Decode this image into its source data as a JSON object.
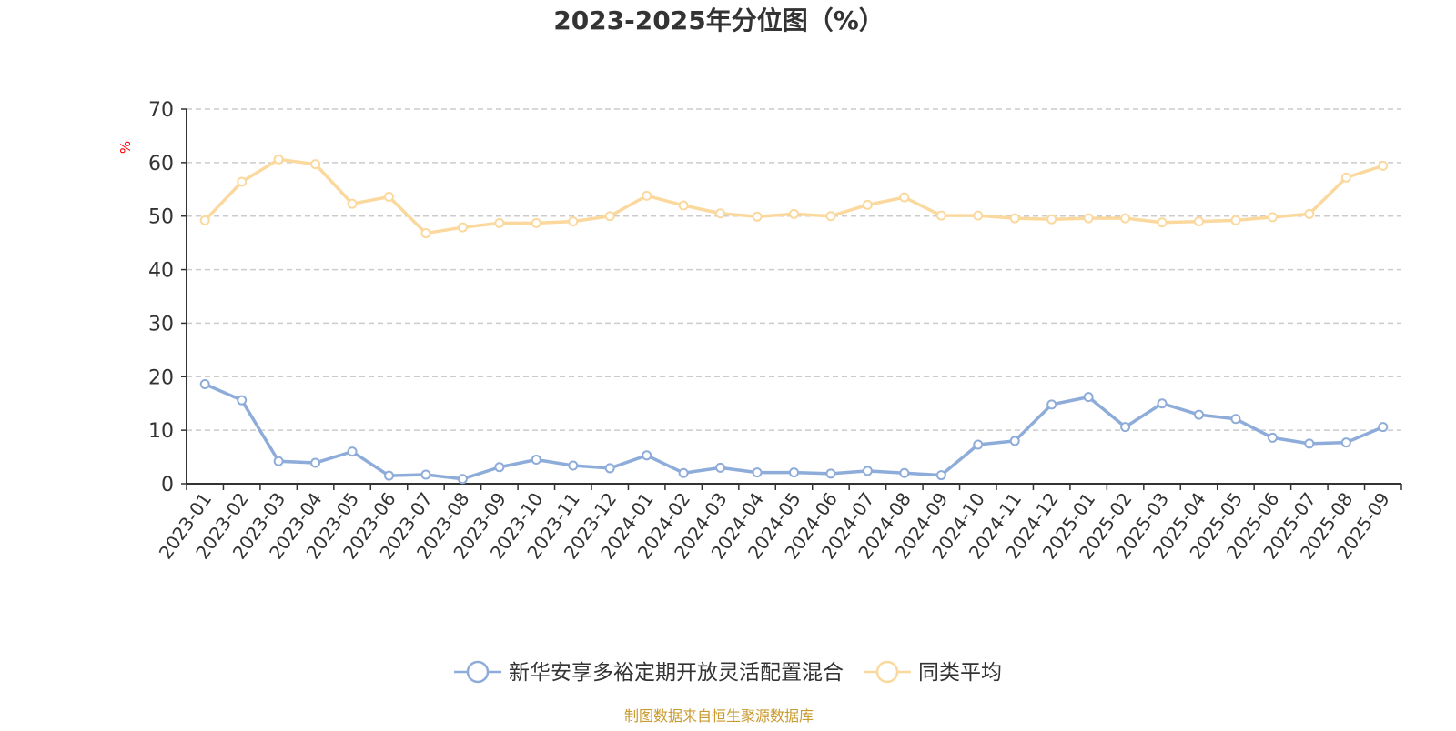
{
  "chart_data": {
    "type": "line",
    "title": "2023-2025年分位图（%）",
    "ylabel": "%",
    "ylim": [
      0,
      70
    ],
    "yticks": [
      0,
      10,
      20,
      30,
      40,
      50,
      60,
      70
    ],
    "grid": true,
    "legend_position": "bottom-center",
    "categories": [
      "2023-01",
      "2023-02",
      "2023-03",
      "2023-04",
      "2023-05",
      "2023-06",
      "2023-07",
      "2023-08",
      "2023-09",
      "2023-10",
      "2023-11",
      "2023-12",
      "2024-01",
      "2024-02",
      "2024-03",
      "2024-04",
      "2024-05",
      "2024-06",
      "2024-07",
      "2024-08",
      "2024-09",
      "2024-10",
      "2024-11",
      "2024-12",
      "2025-01",
      "2025-02",
      "2025-03",
      "2025-04",
      "2025-05",
      "2025-06",
      "2025-07",
      "2025-08",
      "2025-09"
    ],
    "series": [
      {
        "name": "新华安享多裕定期开放灵活配置混合",
        "color": "#8eacd9",
        "values": [
          18.6,
          15.6,
          4.2,
          3.9,
          6.0,
          1.5,
          1.7,
          0.9,
          3.1,
          4.5,
          3.4,
          2.9,
          5.3,
          2.0,
          3.0,
          2.1,
          2.1,
          1.9,
          2.4,
          2.0,
          1.6,
          7.3,
          8.0,
          14.8,
          16.2,
          10.6,
          15.0,
          12.9,
          12.1,
          8.6,
          7.5,
          7.7,
          10.6
        ]
      },
      {
        "name": "同类平均",
        "color": "#fbd99e",
        "values": [
          49.2,
          56.4,
          60.6,
          59.7,
          52.3,
          53.6,
          46.8,
          47.9,
          48.7,
          48.7,
          49.0,
          50.0,
          53.8,
          52.0,
          50.5,
          49.9,
          50.4,
          50.0,
          52.1,
          53.5,
          50.1,
          50.1,
          49.6,
          49.4,
          49.6,
          49.6,
          48.8,
          49.0,
          49.2,
          49.8,
          50.4,
          57.2,
          59.4
        ]
      }
    ],
    "source_note": "制图数据来自恒生聚源数据库"
  }
}
